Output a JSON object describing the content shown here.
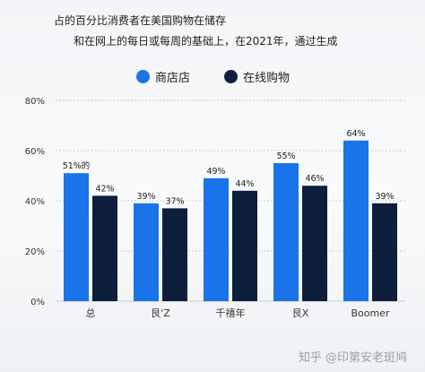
{
  "title_line1": "占的百分比消费者在美国购物在储存",
  "title_line2": "和在网上的每日或每周的基础上，在2021年，通过生成",
  "watermark": "知乎 @印第安老斑鸠",
  "colors": {
    "store": "#1a73e8",
    "online": "#0d1f3c",
    "grid": "#c9cdd3",
    "axis_text": "#333333"
  },
  "chart_data": {
    "type": "bar",
    "categories": [
      "总",
      "艮'Z",
      "千禧年",
      "艮X",
      "Boomer"
    ],
    "series": [
      {
        "name": "商店店",
        "values": [
          51,
          39,
          49,
          55,
          64
        ],
        "labels": [
          "51%的",
          "39%",
          "49%",
          "55%",
          "64%"
        ]
      },
      {
        "name": "在线购物",
        "values": [
          42,
          37,
          44,
          46,
          39
        ],
        "labels": [
          "42%",
          "37%",
          "44%",
          "46%",
          "39%"
        ]
      }
    ],
    "yticks": [
      "0%",
      "20%",
      "40%",
      "60%",
      "80%"
    ],
    "ylim": [
      0,
      80
    ],
    "grid": true,
    "legend_position": "top"
  }
}
